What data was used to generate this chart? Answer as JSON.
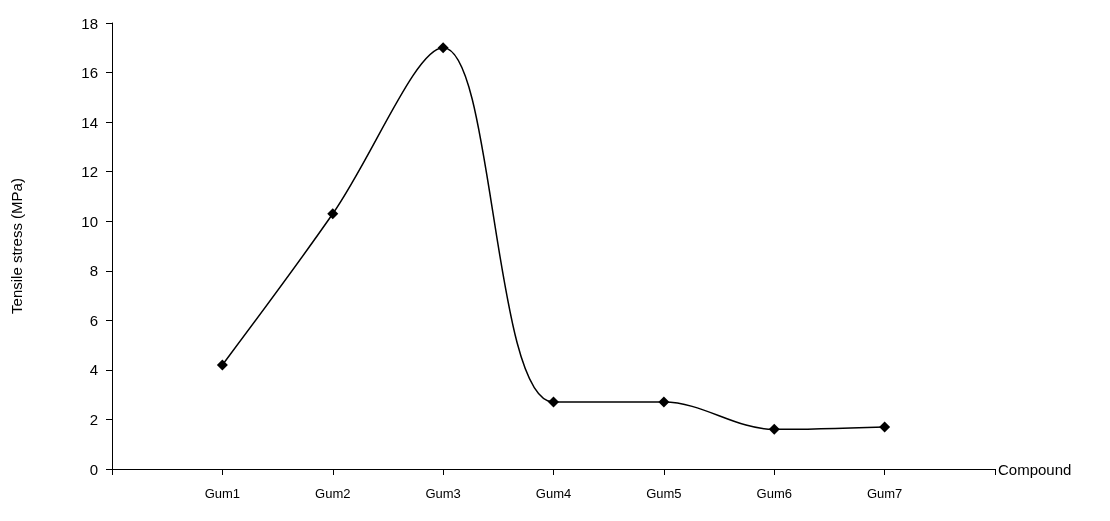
{
  "chart_data": {
    "type": "line",
    "xlabel": "Compound",
    "ylabel": "Tensile stress (MPa)",
    "categories": [
      "Gum1",
      "Gum2",
      "Gum3",
      "Gum4",
      "Gum5",
      "Gum6",
      "Gum7"
    ],
    "series": [
      {
        "color": "#000000",
        "values": [
          4.2,
          10.3,
          17.0,
          2.7,
          2.7,
          1.6,
          1.7
        ]
      }
    ],
    "ylim": [
      0,
      18
    ],
    "yticks": [
      0,
      2,
      4,
      6,
      8,
      10,
      12,
      14,
      16,
      18
    ],
    "grid": false,
    "marker": "diamond",
    "line_style": "solid"
  }
}
